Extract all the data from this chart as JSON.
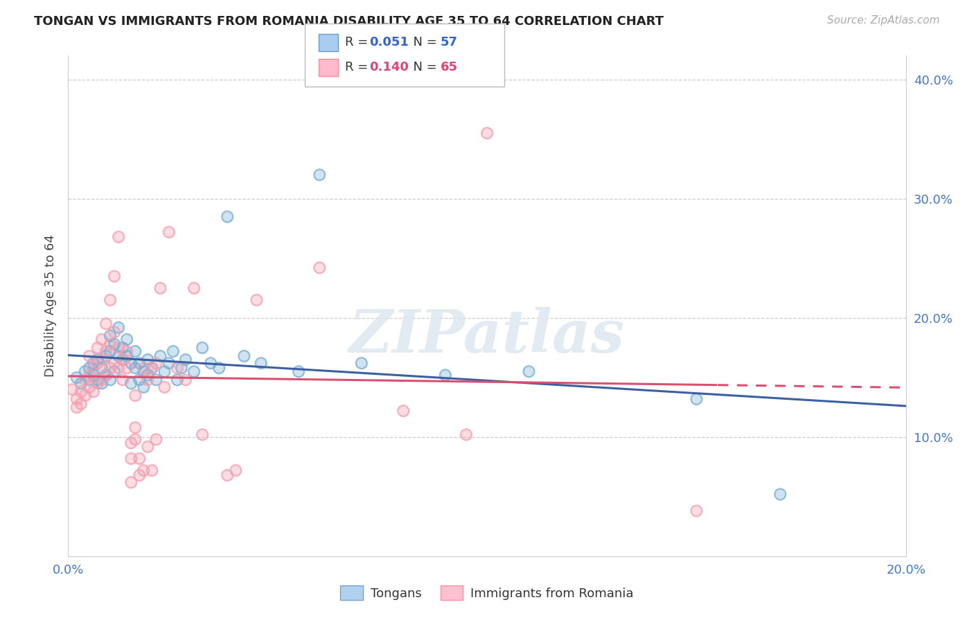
{
  "title": "TONGAN VS IMMIGRANTS FROM ROMANIA DISABILITY AGE 35 TO 64 CORRELATION CHART",
  "source": "Source: ZipAtlas.com",
  "ylabel": "Disability Age 35 to 64",
  "xlim": [
    0.0,
    0.2
  ],
  "ylim": [
    0.0,
    0.42
  ],
  "xticks": [
    0.0,
    0.05,
    0.1,
    0.15,
    0.2
  ],
  "xticklabels": [
    "0.0%",
    "",
    "",
    "",
    "20.0%"
  ],
  "yticks_right": [
    0.1,
    0.2,
    0.3,
    0.4
  ],
  "yticklabels_right": [
    "10.0%",
    "20.0%",
    "30.0%",
    "40.0%"
  ],
  "blue_line_color": "#3B5FA0",
  "pink_line_color": "#D94F70",
  "blue_scatter_color": "#7BAFD4",
  "pink_scatter_color": "#F4A0B0",
  "blue_scatter": [
    [
      0.002,
      0.15
    ],
    [
      0.003,
      0.145
    ],
    [
      0.004,
      0.155
    ],
    [
      0.005,
      0.158
    ],
    [
      0.005,
      0.148
    ],
    [
      0.006,
      0.152
    ],
    [
      0.006,
      0.162
    ],
    [
      0.007,
      0.148
    ],
    [
      0.007,
      0.165
    ],
    [
      0.008,
      0.145
    ],
    [
      0.008,
      0.158
    ],
    [
      0.009,
      0.152
    ],
    [
      0.009,
      0.168
    ],
    [
      0.01,
      0.148
    ],
    [
      0.01,
      0.172
    ],
    [
      0.01,
      0.185
    ],
    [
      0.011,
      0.155
    ],
    [
      0.011,
      0.178
    ],
    [
      0.012,
      0.168
    ],
    [
      0.012,
      0.192
    ],
    [
      0.013,
      0.175
    ],
    [
      0.013,
      0.165
    ],
    [
      0.014,
      0.182
    ],
    [
      0.014,
      0.168
    ],
    [
      0.015,
      0.162
    ],
    [
      0.015,
      0.145
    ],
    [
      0.016,
      0.158
    ],
    [
      0.016,
      0.172
    ],
    [
      0.017,
      0.148
    ],
    [
      0.017,
      0.162
    ],
    [
      0.018,
      0.155
    ],
    [
      0.018,
      0.142
    ],
    [
      0.019,
      0.152
    ],
    [
      0.019,
      0.165
    ],
    [
      0.02,
      0.158
    ],
    [
      0.021,
      0.148
    ],
    [
      0.022,
      0.168
    ],
    [
      0.023,
      0.155
    ],
    [
      0.024,
      0.162
    ],
    [
      0.025,
      0.172
    ],
    [
      0.026,
      0.148
    ],
    [
      0.027,
      0.158
    ],
    [
      0.028,
      0.165
    ],
    [
      0.03,
      0.155
    ],
    [
      0.032,
      0.175
    ],
    [
      0.034,
      0.162
    ],
    [
      0.036,
      0.158
    ],
    [
      0.038,
      0.285
    ],
    [
      0.042,
      0.168
    ],
    [
      0.046,
      0.162
    ],
    [
      0.055,
      0.155
    ],
    [
      0.06,
      0.32
    ],
    [
      0.07,
      0.162
    ],
    [
      0.09,
      0.152
    ],
    [
      0.11,
      0.155
    ],
    [
      0.15,
      0.132
    ],
    [
      0.17,
      0.052
    ]
  ],
  "pink_scatter": [
    [
      0.001,
      0.14
    ],
    [
      0.002,
      0.132
    ],
    [
      0.002,
      0.125
    ],
    [
      0.003,
      0.138
    ],
    [
      0.003,
      0.128
    ],
    [
      0.004,
      0.148
    ],
    [
      0.004,
      0.135
    ],
    [
      0.005,
      0.152
    ],
    [
      0.005,
      0.142
    ],
    [
      0.005,
      0.168
    ],
    [
      0.006,
      0.138
    ],
    [
      0.006,
      0.158
    ],
    [
      0.007,
      0.145
    ],
    [
      0.007,
      0.162
    ],
    [
      0.007,
      0.175
    ],
    [
      0.008,
      0.148
    ],
    [
      0.008,
      0.165
    ],
    [
      0.008,
      0.182
    ],
    [
      0.009,
      0.152
    ],
    [
      0.009,
      0.172
    ],
    [
      0.009,
      0.195
    ],
    [
      0.01,
      0.158
    ],
    [
      0.01,
      0.178
    ],
    [
      0.01,
      0.215
    ],
    [
      0.011,
      0.162
    ],
    [
      0.011,
      0.188
    ],
    [
      0.011,
      0.235
    ],
    [
      0.012,
      0.158
    ],
    [
      0.012,
      0.175
    ],
    [
      0.012,
      0.268
    ],
    [
      0.013,
      0.148
    ],
    [
      0.013,
      0.165
    ],
    [
      0.014,
      0.158
    ],
    [
      0.014,
      0.172
    ],
    [
      0.015,
      0.062
    ],
    [
      0.015,
      0.082
    ],
    [
      0.015,
      0.095
    ],
    [
      0.016,
      0.098
    ],
    [
      0.016,
      0.108
    ],
    [
      0.016,
      0.135
    ],
    [
      0.017,
      0.068
    ],
    [
      0.017,
      0.082
    ],
    [
      0.018,
      0.072
    ],
    [
      0.018,
      0.158
    ],
    [
      0.019,
      0.092
    ],
    [
      0.019,
      0.148
    ],
    [
      0.02,
      0.072
    ],
    [
      0.02,
      0.158
    ],
    [
      0.021,
      0.098
    ],
    [
      0.021,
      0.162
    ],
    [
      0.022,
      0.225
    ],
    [
      0.023,
      0.142
    ],
    [
      0.024,
      0.272
    ],
    [
      0.026,
      0.158
    ],
    [
      0.028,
      0.148
    ],
    [
      0.03,
      0.225
    ],
    [
      0.032,
      0.102
    ],
    [
      0.038,
      0.068
    ],
    [
      0.04,
      0.072
    ],
    [
      0.045,
      0.215
    ],
    [
      0.06,
      0.242
    ],
    [
      0.08,
      0.122
    ],
    [
      0.095,
      0.102
    ],
    [
      0.1,
      0.355
    ],
    [
      0.15,
      0.038
    ]
  ]
}
